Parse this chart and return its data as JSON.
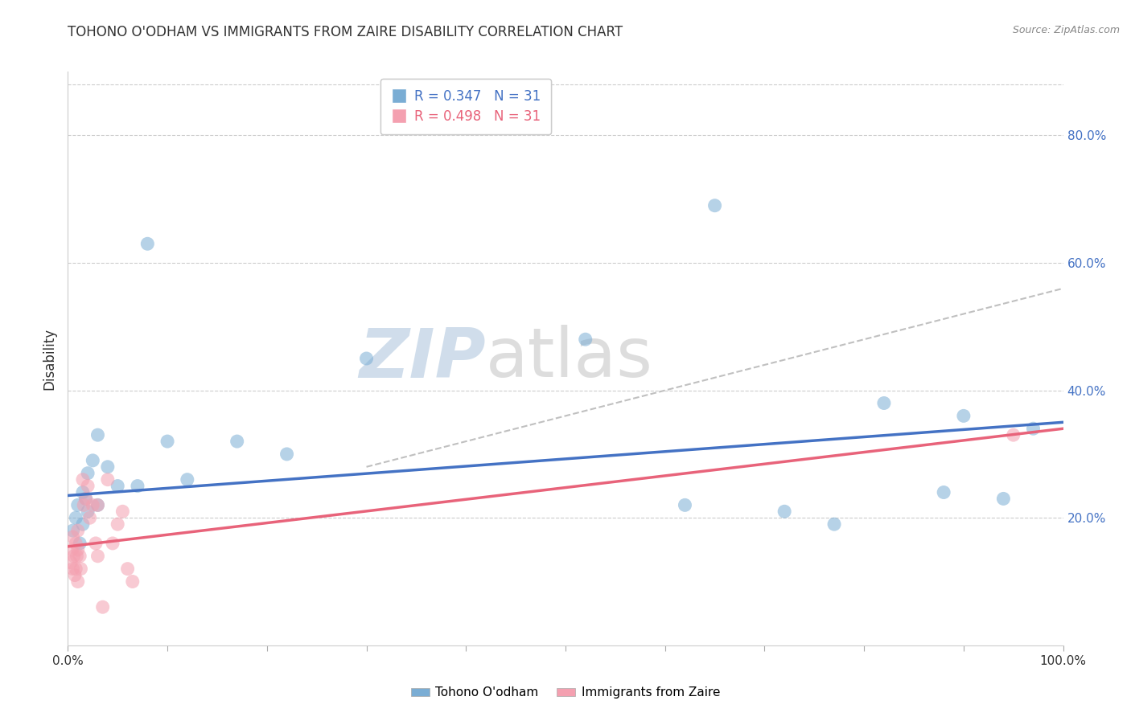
{
  "title": "TOHONO O'ODHAM VS IMMIGRANTS FROM ZAIRE DISABILITY CORRELATION CHART",
  "source": "Source: ZipAtlas.com",
  "ylabel": "Disability",
  "xlim": [
    0,
    1.0
  ],
  "ylim": [
    0,
    0.9
  ],
  "xticks": [
    0.0,
    0.1,
    0.2,
    0.3,
    0.4,
    0.5,
    0.6,
    0.7,
    0.8,
    0.9,
    1.0
  ],
  "xticklabels_shown": {
    "0.0": "0.0%",
    "1.0": "100.0%"
  },
  "yticks": [
    0.2,
    0.4,
    0.6,
    0.8
  ],
  "yticklabels": [
    "20.0%",
    "40.0%",
    "60.0%",
    "80.0%"
  ],
  "blue_R": "0.347",
  "blue_N": "31",
  "pink_R": "0.498",
  "pink_N": "31",
  "blue_color": "#7aadd4",
  "pink_color": "#f4a0b0",
  "blue_line_color": "#4472c4",
  "pink_line_color": "#e8637a",
  "dashed_line_color": "#c0c0c0",
  "watermark_zip": "ZIP",
  "watermark_atlas": "atlas",
  "blue_points_x": [
    0.005,
    0.008,
    0.01,
    0.012,
    0.015,
    0.015,
    0.018,
    0.02,
    0.02,
    0.025,
    0.03,
    0.03,
    0.04,
    0.05,
    0.07,
    0.08,
    0.1,
    0.12,
    0.17,
    0.22,
    0.3,
    0.52,
    0.62,
    0.65,
    0.72,
    0.77,
    0.82,
    0.88,
    0.9,
    0.94,
    0.97
  ],
  "blue_points_y": [
    0.18,
    0.2,
    0.22,
    0.16,
    0.24,
    0.19,
    0.23,
    0.27,
    0.21,
    0.29,
    0.33,
    0.22,
    0.28,
    0.25,
    0.25,
    0.63,
    0.32,
    0.26,
    0.32,
    0.3,
    0.45,
    0.48,
    0.22,
    0.69,
    0.21,
    0.19,
    0.38,
    0.24,
    0.36,
    0.23,
    0.34
  ],
  "pink_points_x": [
    0.003,
    0.004,
    0.005,
    0.005,
    0.006,
    0.007,
    0.008,
    0.008,
    0.009,
    0.01,
    0.01,
    0.01,
    0.012,
    0.013,
    0.015,
    0.016,
    0.018,
    0.02,
    0.022,
    0.025,
    0.028,
    0.03,
    0.03,
    0.035,
    0.04,
    0.045,
    0.05,
    0.055,
    0.06,
    0.065,
    0.95
  ],
  "pink_points_y": [
    0.13,
    0.15,
    0.12,
    0.17,
    0.14,
    0.11,
    0.16,
    0.12,
    0.14,
    0.15,
    0.18,
    0.1,
    0.14,
    0.12,
    0.26,
    0.22,
    0.23,
    0.25,
    0.2,
    0.22,
    0.16,
    0.22,
    0.14,
    0.06,
    0.26,
    0.16,
    0.19,
    0.21,
    0.12,
    0.1,
    0.33
  ],
  "blue_trend_x": [
    0.0,
    1.0
  ],
  "blue_trend_y": [
    0.235,
    0.35
  ],
  "pink_trend_x": [
    0.0,
    1.0
  ],
  "pink_trend_y": [
    0.155,
    0.34
  ],
  "dashed_trend_x": [
    0.3,
    1.0
  ],
  "dashed_trend_y": [
    0.28,
    0.56
  ],
  "legend_label_blue": "Tohono O'odham",
  "legend_label_pink": "Immigrants from Zaire",
  "background_color": "#ffffff",
  "grid_color": "#cccccc"
}
